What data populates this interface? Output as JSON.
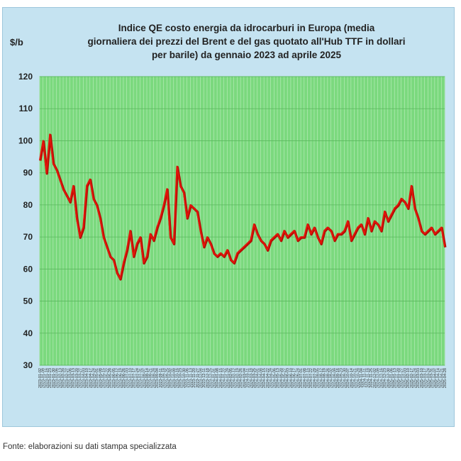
{
  "title": "Indice QE costo energia da idrocarburi in Europa (media giornaliera dei prezzi del Brent e del gas quotato all'Hub TTF in dollari per barile) da gennaio 2023 ad aprile 2025",
  "source": "Fonte: elaborazioni su dati stampa specializzata",
  "colors": {
    "frame": "#c5e3f1",
    "plot": "#7bd97e",
    "line": "#e3150a",
    "grid": "#bfeec0"
  },
  "chart_data": {
    "type": "line",
    "title": "Indice QE costo energia da idrocarburi in Europa (media giornaliera dei prezzi del Brent e del gas quotato all'Hub TTF in dollari per barile) da gennaio 2023 ad aprile 2025",
    "ylabel": "$/b",
    "xlabel": "",
    "ylim": [
      30,
      120
    ],
    "yticks": [
      30,
      40,
      50,
      60,
      70,
      80,
      90,
      100,
      110,
      120
    ],
    "grid": true,
    "x": [
      "2023-01-02",
      "2023-01-09",
      "2023-01-16",
      "2023-01-23",
      "2023-01-30",
      "2023-02-06",
      "2023-02-13",
      "2023-02-20",
      "2023-02-27",
      "2023-03-06",
      "2023-03-13",
      "2023-03-20",
      "2023-03-27",
      "2023-04-03",
      "2023-04-10",
      "2023-04-17",
      "2023-04-24",
      "2023-05-01",
      "2023-05-08",
      "2023-05-15",
      "2023-05-22",
      "2023-05-29",
      "2023-06-05",
      "2023-06-12",
      "2023-06-19",
      "2023-06-26",
      "2023-07-03",
      "2023-07-10",
      "2023-07-17",
      "2023-07-24",
      "2023-07-31",
      "2023-08-07",
      "2023-08-14",
      "2023-08-21",
      "2023-08-28",
      "2023-09-04",
      "2023-09-11",
      "2023-09-18",
      "2023-09-25",
      "2023-10-02",
      "2023-10-09",
      "2023-10-16",
      "2023-10-23",
      "2023-10-30",
      "2023-11-06",
      "2023-11-13",
      "2023-11-20",
      "2023-11-27",
      "2023-12-04",
      "2023-12-11",
      "2023-12-18",
      "2023-12-25",
      "2024-01-01",
      "2024-01-08",
      "2024-01-15",
      "2024-01-22",
      "2024-01-29",
      "2024-02-05",
      "2024-02-12",
      "2024-02-19",
      "2024-02-26",
      "2024-03-04",
      "2024-03-11",
      "2024-03-18",
      "2024-03-25",
      "2024-04-01",
      "2024-04-08",
      "2024-04-15",
      "2024-04-22",
      "2024-04-29",
      "2024-05-06",
      "2024-05-13",
      "2024-05-20",
      "2024-05-27",
      "2024-06-03",
      "2024-06-10",
      "2024-06-17",
      "2024-06-24",
      "2024-07-01",
      "2024-07-08",
      "2024-07-15",
      "2024-07-22",
      "2024-07-29",
      "2024-08-05",
      "2024-08-12",
      "2024-08-19",
      "2024-08-26",
      "2024-09-02",
      "2024-09-09",
      "2024-09-16",
      "2024-09-23",
      "2024-09-30",
      "2024-10-07",
      "2024-10-14",
      "2024-10-21",
      "2024-10-28",
      "2024-11-04",
      "2024-11-11",
      "2024-11-18",
      "2024-11-25",
      "2024-12-02",
      "2024-12-09",
      "2024-12-16",
      "2024-12-23",
      "2024-12-30",
      "2025-01-06",
      "2025-01-13",
      "2025-01-20",
      "2025-01-27",
      "2025-02-03",
      "2025-02-10",
      "2025-02-17",
      "2025-02-24",
      "2025-03-03",
      "2025-03-10",
      "2025-03-17",
      "2025-03-24",
      "2025-03-31",
      "2025-04-07",
      "2025-04-14",
      "2025-04-21",
      "2025-04-28"
    ],
    "series": [
      {
        "values": [
          94,
          100,
          90,
          102,
          93,
          91,
          88,
          85,
          83,
          81,
          86,
          76,
          70,
          73,
          86,
          88,
          82,
          80,
          76,
          70,
          67,
          64,
          63,
          59,
          57,
          62,
          66,
          72,
          64,
          68,
          70,
          62,
          64,
          71,
          69,
          73,
          76,
          80,
          85,
          70,
          68,
          92,
          86,
          84,
          76,
          80,
          79,
          78,
          72,
          67,
          70,
          68,
          65,
          64,
          65,
          64,
          66,
          63,
          62,
          65,
          66,
          67,
          68,
          69,
          74,
          71,
          69,
          68,
          66,
          69,
          70,
          71,
          69,
          72,
          70,
          71,
          72,
          69,
          70,
          70,
          74,
          71,
          73,
          70,
          68,
          72,
          73,
          72,
          69,
          71,
          71,
          72,
          75,
          69,
          71,
          73,
          74,
          71,
          76,
          72,
          75,
          74,
          72,
          78,
          75,
          77,
          79,
          80,
          82,
          81,
          79,
          86,
          79,
          76,
          72,
          71,
          72,
          73,
          71,
          72,
          73,
          67
        ]
      }
    ]
  }
}
